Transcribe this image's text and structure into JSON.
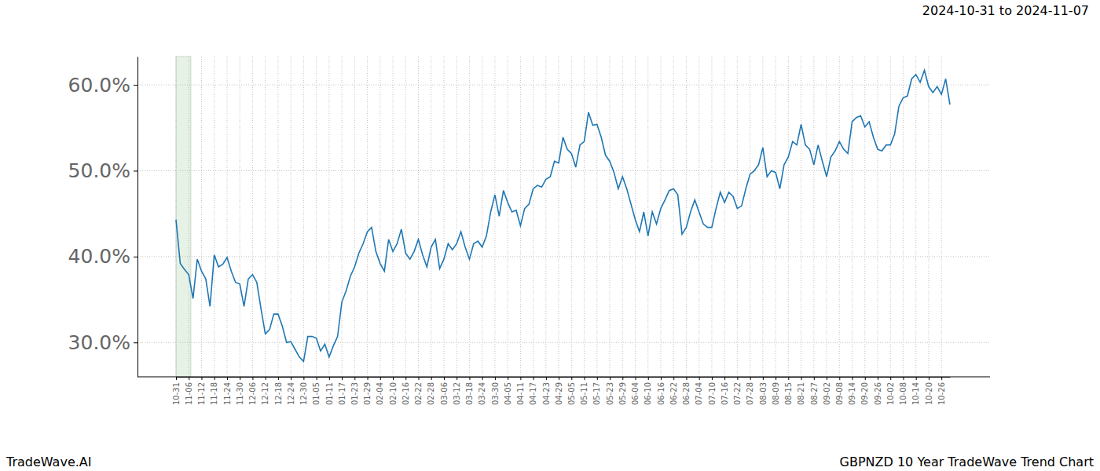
{
  "chart_data": {
    "type": "line",
    "title": "GBPNZD 10 Year TradeWave Trend Chart",
    "subtitle": "2024-10-31 to 2024-11-07",
    "annotations": [
      {
        "text": "TradeWave.AI"
      }
    ],
    "highlight": {
      "from": "10-31",
      "to": "11-06"
    },
    "color": "#1f77b4",
    "grid": true,
    "ylim": [
      26.0,
      63.3
    ],
    "yticks": [
      {
        "value": 30,
        "label": "30.0%"
      },
      {
        "value": 40,
        "label": "40.0%"
      },
      {
        "value": 50,
        "label": "50.0%"
      },
      {
        "value": 60,
        "label": "60.0%"
      }
    ],
    "categories": [
      "10-31",
      null,
      null,
      "11-06",
      null,
      null,
      "11-12",
      null,
      null,
      "11-18",
      null,
      null,
      "11-24",
      null,
      null,
      "11-30",
      null,
      null,
      "12-06",
      null,
      null,
      "12-12",
      null,
      null,
      "12-18",
      null,
      null,
      "12-24",
      null,
      null,
      "12-30",
      null,
      null,
      "01-05",
      null,
      null,
      "01-11",
      null,
      null,
      "01-17",
      null,
      null,
      "01-23",
      null,
      null,
      "01-29",
      null,
      null,
      "02-04",
      null,
      null,
      "02-10",
      null,
      null,
      "02-16",
      null,
      null,
      "02-22",
      null,
      null,
      "02-28",
      null,
      null,
      "03-06",
      null,
      null,
      "03-12",
      null,
      null,
      "03-18",
      null,
      null,
      "03-24",
      null,
      null,
      "03-30",
      null,
      null,
      "04-05",
      null,
      null,
      "04-11",
      null,
      null,
      "04-17",
      null,
      null,
      "04-23",
      null,
      null,
      "04-29",
      null,
      null,
      "05-05",
      null,
      null,
      "05-11",
      null,
      null,
      "05-17",
      null,
      null,
      "05-23",
      null,
      null,
      "05-29",
      null,
      null,
      "06-04",
      null,
      null,
      "06-10",
      null,
      null,
      "06-16",
      null,
      null,
      "06-22",
      null,
      null,
      "06-28",
      null,
      null,
      "07-04",
      null,
      null,
      "07-10",
      null,
      null,
      "07-16",
      null,
      null,
      "07-22",
      null,
      null,
      "07-28",
      null,
      null,
      "08-03",
      null,
      null,
      "08-09",
      null,
      null,
      "08-15",
      null,
      null,
      "08-21",
      null,
      null,
      "08-27",
      null,
      null,
      "09-02",
      null,
      null,
      "09-08",
      null,
      null,
      "09-14",
      null,
      null,
      "09-20",
      null,
      null,
      "09-26",
      null,
      null,
      "10-02",
      null,
      null,
      "10-08",
      null,
      null,
      "10-14",
      null,
      null,
      "10-20",
      null,
      null,
      "10-26",
      null,
      null
    ],
    "values": [
      44.3,
      39.2,
      38.5,
      37.9,
      35.1,
      39.7,
      38.3,
      37.4,
      34.2,
      40.2,
      38.8,
      39.1,
      39.9,
      38.3,
      37.0,
      36.8,
      34.2,
      37.4,
      37.9,
      37.0,
      33.9,
      31.0,
      31.5,
      33.3,
      33.3,
      31.9,
      30.0,
      30.1,
      29.2,
      28.3,
      27.8,
      30.7,
      30.7,
      30.5,
      29.0,
      29.8,
      28.3,
      29.6,
      30.7,
      34.7,
      36.0,
      37.7,
      38.8,
      40.4,
      41.5,
      42.9,
      43.4,
      40.6,
      39.2,
      38.3,
      42.0,
      40.6,
      41.5,
      43.2,
      40.4,
      39.7,
      40.6,
      42.0,
      40.2,
      38.8,
      41.1,
      42.0,
      38.6,
      39.7,
      41.5,
      40.8,
      41.5,
      42.9,
      41.1,
      39.7,
      41.5,
      41.8,
      41.1,
      42.4,
      45.2,
      47.2,
      44.7,
      47.7,
      46.3,
      45.2,
      45.4,
      43.6,
      45.6,
      46.1,
      47.9,
      48.3,
      48.1,
      49.0,
      49.3,
      51.1,
      50.9,
      53.9,
      52.5,
      52.0,
      50.4,
      53.0,
      53.4,
      56.8,
      55.3,
      55.4,
      53.9,
      51.8,
      51.1,
      49.8,
      47.9,
      49.3,
      47.9,
      46.1,
      44.3,
      42.9,
      45.2,
      42.4,
      45.2,
      43.8,
      45.6,
      46.6,
      47.7,
      47.9,
      47.2,
      42.6,
      43.4,
      45.2,
      46.6,
      45.2,
      43.8,
      43.4,
      43.4,
      45.6,
      47.5,
      46.3,
      47.5,
      47.0,
      45.6,
      45.9,
      47.9,
      49.6,
      50.0,
      50.7,
      52.7,
      49.3,
      50.0,
      49.8,
      47.9,
      50.7,
      51.6,
      53.4,
      53.0,
      55.4,
      53.0,
      52.5,
      50.7,
      53.0,
      51.1,
      49.3,
      51.6,
      52.3,
      53.4,
      52.5,
      52.0,
      55.7,
      56.2,
      56.4,
      55.1,
      55.7,
      53.9,
      52.5,
      52.3,
      53.0,
      53.0,
      54.3,
      57.5,
      58.5,
      58.7,
      60.7,
      61.2,
      60.3,
      61.7,
      59.8,
      59.1,
      59.8,
      58.9,
      60.7,
      57.7
    ]
  }
}
